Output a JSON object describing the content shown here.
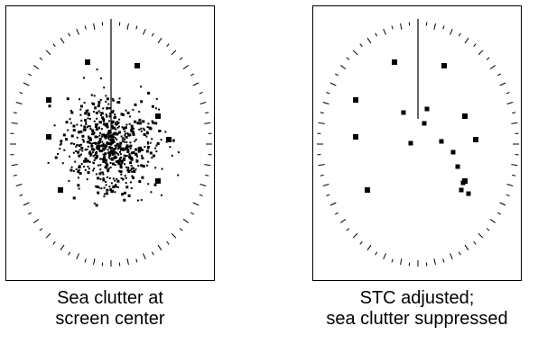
{
  "panels": [
    {
      "id": "left",
      "caption_line1": "Sea clutter at",
      "caption_line2": "screen center",
      "clutter": "heavy"
    },
    {
      "id": "right",
      "caption_line1": "STC adjusted;",
      "caption_line2": "sea clutter suppressed",
      "clutter": "suppressed"
    }
  ],
  "colors": {
    "ink": "#000000",
    "background": "#ffffff"
  }
}
